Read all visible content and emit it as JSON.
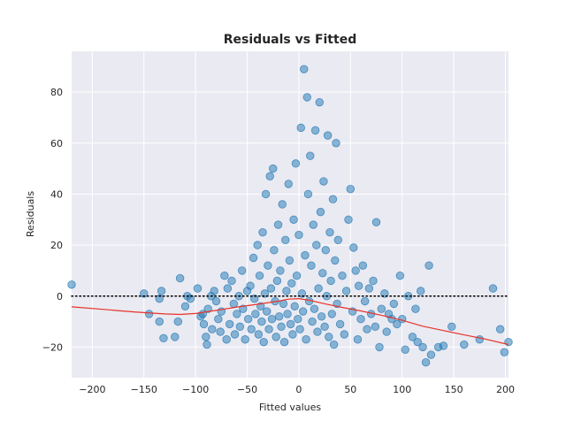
{
  "chart_data": {
    "type": "scatter",
    "title": "Residuals vs Fitted",
    "xlabel": "Fitted values",
    "ylabel": "Residuals",
    "xlim": [
      -220,
      203
    ],
    "ylim": [
      -32,
      96
    ],
    "x_ticks": [
      -200,
      -150,
      -100,
      -50,
      0,
      50,
      100,
      150,
      200
    ],
    "y_ticks": [
      -20,
      0,
      20,
      40,
      60,
      80
    ],
    "x_tick_labels": [
      "−200",
      "−150",
      "−100",
      "−50",
      "0",
      "50",
      "100",
      "150",
      "200"
    ],
    "y_tick_labels": [
      "−20",
      "0",
      "20",
      "40",
      "60",
      "80"
    ],
    "grid": true,
    "background": "#eaeaf2",
    "point_color": "#1f77b4",
    "point_opacity": 0.5,
    "reference_line": {
      "y": 0,
      "style": "dotted",
      "color": "#000000"
    },
    "smoother_color": "#e8332a",
    "smoother": [
      [
        -220,
        -4.2
      ],
      [
        -190,
        -5.2
      ],
      [
        -160,
        -6.2
      ],
      [
        -130,
        -7.0
      ],
      [
        -115,
        -7.2
      ],
      [
        -100,
        -6.8
      ],
      [
        -80,
        -5.6
      ],
      [
        -60,
        -4.3
      ],
      [
        -40,
        -3.2
      ],
      [
        -20,
        -2.0
      ],
      [
        -10,
        -1.2
      ],
      [
        0,
        -1.0
      ],
      [
        10,
        -1.6
      ],
      [
        25,
        -3.0
      ],
      [
        40,
        -4.3
      ],
      [
        60,
        -5.8
      ],
      [
        80,
        -7.5
      ],
      [
        100,
        -9.5
      ],
      [
        120,
        -11.8
      ],
      [
        140,
        -13.5
      ],
      [
        160,
        -15.2
      ],
      [
        180,
        -16.8
      ],
      [
        203,
        -19.0
      ]
    ],
    "points": [
      [
        -220,
        4.5
      ],
      [
        -150,
        1
      ],
      [
        -145,
        -7
      ],
      [
        -135,
        -1
      ],
      [
        -133,
        2
      ],
      [
        -135,
        -10
      ],
      [
        -131,
        -16.5
      ],
      [
        -120,
        -16
      ],
      [
        -117,
        -10
      ],
      [
        -115,
        7
      ],
      [
        -110,
        -4
      ],
      [
        -108,
        0
      ],
      [
        -105,
        -1
      ],
      [
        -98,
        3
      ],
      [
        -95,
        -8
      ],
      [
        -93,
        -7
      ],
      [
        -92,
        -11
      ],
      [
        -90,
        -16
      ],
      [
        -89,
        -19
      ],
      [
        -88,
        -5
      ],
      [
        -85,
        0
      ],
      [
        -84,
        -13
      ],
      [
        -82,
        2
      ],
      [
        -80,
        -2
      ],
      [
        -78,
        -9
      ],
      [
        -76,
        -14
      ],
      [
        -75,
        -6
      ],
      [
        -72,
        8
      ],
      [
        -70,
        -17
      ],
      [
        -69,
        3
      ],
      [
        -67,
        -11
      ],
      [
        -65,
        6
      ],
      [
        -63,
        -3
      ],
      [
        -62,
        -15
      ],
      [
        -60,
        -7
      ],
      [
        -58,
        0
      ],
      [
        -57,
        -12
      ],
      [
        -55,
        10
      ],
      [
        -54,
        -5
      ],
      [
        -52,
        -17
      ],
      [
        -50,
        2
      ],
      [
        -49,
        -9
      ],
      [
        -47,
        4
      ],
      [
        -46,
        -13
      ],
      [
        -44,
        15
      ],
      [
        -43,
        -1
      ],
      [
        -42,
        -7
      ],
      [
        -40,
        20
      ],
      [
        -39,
        -15
      ],
      [
        -38,
        8
      ],
      [
        -37,
        -4
      ],
      [
        -36,
        -10
      ],
      [
        -35,
        25
      ],
      [
        -34,
        -18
      ],
      [
        -33,
        1
      ],
      [
        -32,
        40
      ],
      [
        -31,
        -6
      ],
      [
        -30,
        12
      ],
      [
        -29,
        -13
      ],
      [
        -28,
        47
      ],
      [
        -27,
        3
      ],
      [
        -26,
        -9
      ],
      [
        -25,
        50
      ],
      [
        -24,
        18
      ],
      [
        -23,
        -2
      ],
      [
        -22,
        -16
      ],
      [
        -21,
        6
      ],
      [
        -20,
        28
      ],
      [
        -19,
        -8
      ],
      [
        -18,
        10
      ],
      [
        -17,
        -12
      ],
      [
        -16,
        36
      ],
      [
        -15,
        -3
      ],
      [
        -14,
        -18
      ],
      [
        -13,
        22
      ],
      [
        -12,
        2
      ],
      [
        -11,
        -7
      ],
      [
        -10,
        44
      ],
      [
        -9,
        14
      ],
      [
        -8,
        -11
      ],
      [
        -7,
        5
      ],
      [
        -6,
        -15
      ],
      [
        -5,
        30
      ],
      [
        -4,
        -4
      ],
      [
        -3,
        52
      ],
      [
        -2,
        8
      ],
      [
        -1,
        -9
      ],
      [
        0,
        24
      ],
      [
        1,
        -13
      ],
      [
        2,
        66
      ],
      [
        3,
        1
      ],
      [
        4,
        -6
      ],
      [
        5,
        89
      ],
      [
        6,
        16
      ],
      [
        7,
        -17
      ],
      [
        8,
        78
      ],
      [
        9,
        40
      ],
      [
        10,
        -2
      ],
      [
        11,
        55
      ],
      [
        12,
        12
      ],
      [
        13,
        -10
      ],
      [
        14,
        28
      ],
      [
        15,
        -5
      ],
      [
        16,
        65
      ],
      [
        17,
        20
      ],
      [
        18,
        -14
      ],
      [
        19,
        3
      ],
      [
        20,
        76
      ],
      [
        21,
        33
      ],
      [
        22,
        -8
      ],
      [
        23,
        9
      ],
      [
        24,
        45
      ],
      [
        25,
        -12
      ],
      [
        26,
        18
      ],
      [
        27,
        0
      ],
      [
        28,
        63
      ],
      [
        29,
        -16
      ],
      [
        30,
        25
      ],
      [
        31,
        6
      ],
      [
        32,
        -7
      ],
      [
        33,
        38
      ],
      [
        34,
        -19
      ],
      [
        35,
        14
      ],
      [
        36,
        60
      ],
      [
        37,
        -3
      ],
      [
        38,
        22
      ],
      [
        40,
        -11
      ],
      [
        42,
        8
      ],
      [
        44,
        -15
      ],
      [
        46,
        2
      ],
      [
        48,
        30
      ],
      [
        50,
        42
      ],
      [
        52,
        -6
      ],
      [
        53,
        19
      ],
      [
        55,
        10
      ],
      [
        57,
        -17
      ],
      [
        58,
        4
      ],
      [
        60,
        -9
      ],
      [
        62,
        12
      ],
      [
        64,
        -2
      ],
      [
        66,
        -13
      ],
      [
        68,
        3
      ],
      [
        70,
        -7
      ],
      [
        72,
        6
      ],
      [
        74,
        -12
      ],
      [
        75,
        29
      ],
      [
        78,
        -20
      ],
      [
        80,
        -5
      ],
      [
        83,
        1
      ],
      [
        85,
        -14
      ],
      [
        87,
        -7
      ],
      [
        90,
        -9
      ],
      [
        92,
        -3
      ],
      [
        95,
        -11
      ],
      [
        98,
        8
      ],
      [
        100,
        -9
      ],
      [
        103,
        -21
      ],
      [
        106,
        0
      ],
      [
        110,
        -16
      ],
      [
        113,
        -5
      ],
      [
        115,
        -18
      ],
      [
        118,
        2
      ],
      [
        120,
        -20
      ],
      [
        123,
        -26
      ],
      [
        126,
        12
      ],
      [
        128,
        -23
      ],
      [
        135,
        -20
      ],
      [
        140,
        -19.5
      ],
      [
        148,
        -12
      ],
      [
        160,
        -19
      ],
      [
        175,
        -17
      ],
      [
        188,
        3
      ],
      [
        195,
        -13
      ],
      [
        199,
        -22
      ],
      [
        203,
        -18
      ]
    ]
  }
}
